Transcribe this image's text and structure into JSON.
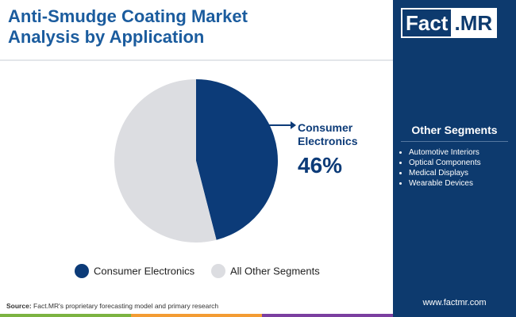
{
  "chart_data": {
    "type": "pie",
    "title": "Anti-Smudge Coating Market Analysis by Application",
    "categories": [
      "Consumer Electronics",
      "All Other Segments"
    ],
    "values": [
      46,
      54
    ],
    "value_labels": [
      "46%",
      null
    ],
    "colors": [
      "#0c3b78",
      "#dcdde1"
    ],
    "legend": "bottom"
  },
  "logo": {
    "text": "Fact",
    "suffix": ".MR"
  },
  "side_panel": {
    "title": "Other Segments",
    "items": [
      "Automotive Interiors",
      "Optical Components",
      "Medical Displays",
      "Wearable Devices"
    ]
  },
  "footer": {
    "source_label": "Source:",
    "source_text": "Fact.MR's proprietary forecasting model and primary research",
    "website": "www.factmr.com"
  }
}
